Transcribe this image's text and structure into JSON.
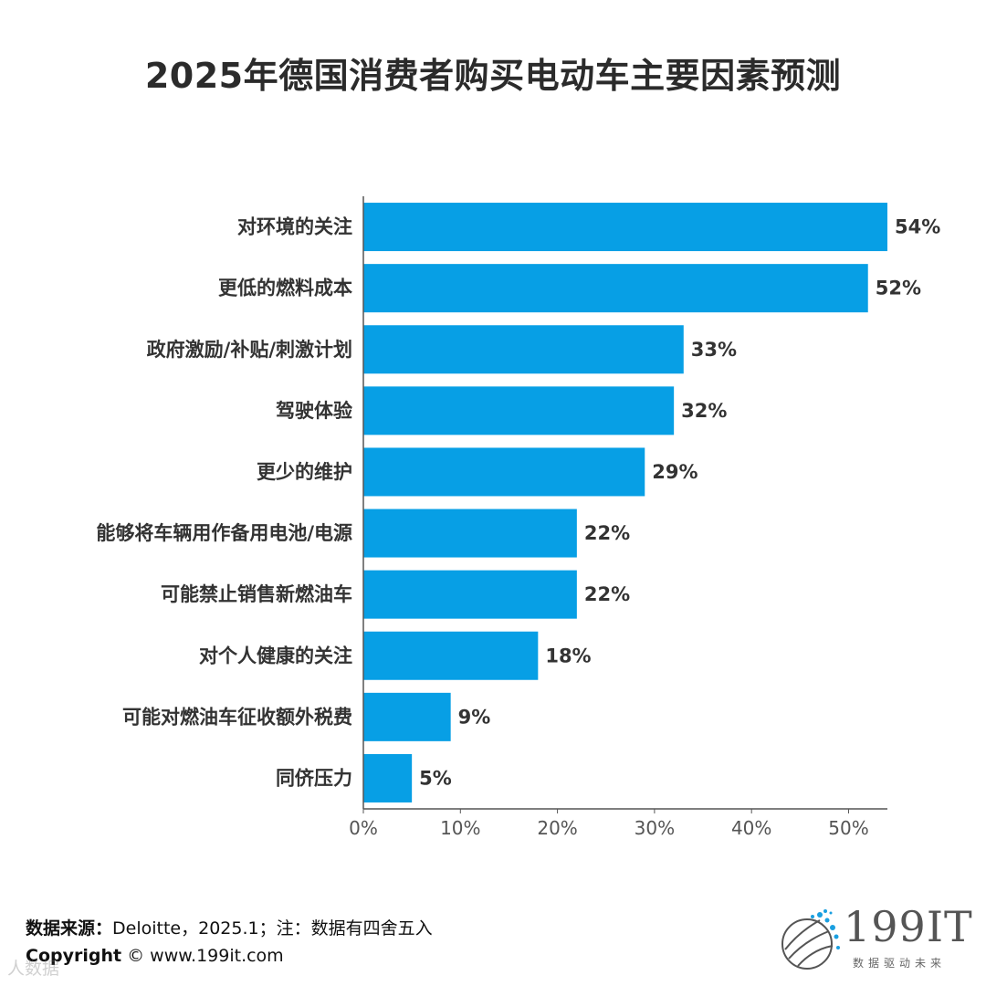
{
  "title": "2025年德国消费者购买电动车主要因素预测",
  "chart_data": {
    "type": "bar",
    "orientation": "horizontal",
    "categories": [
      "对环境的关注",
      "更低的燃料成本",
      "政府激励/补贴/刺激计划",
      "驾驶体验",
      "更少的维护",
      "能够将车辆用作备用电池/电源",
      "可能禁止销售新燃油车",
      "对个人健康的关注",
      "可能对燃油车征收额外税费",
      "同侪压力"
    ],
    "values": [
      54,
      52,
      33,
      32,
      29,
      22,
      22,
      18,
      9,
      5
    ],
    "value_labels": [
      "54%",
      "52%",
      "33%",
      "32%",
      "29%",
      "22%",
      "22%",
      "18%",
      "9%",
      "5%"
    ],
    "xlim": [
      0,
      54
    ],
    "x_ticks": [
      "0%",
      "10%",
      "20%",
      "30%",
      "40%",
      "50%"
    ],
    "x_tick_values": [
      0,
      10,
      20,
      30,
      40,
      50
    ],
    "bar_color": "#079fe5",
    "grid": false,
    "legend": "none"
  },
  "footer": {
    "source_label": "数据来源：",
    "source_text": "Deloitte，2025.1；注：数据有四舍五入",
    "copyright_label": "Copyright",
    "copyright_text": "©  www.199it.com",
    "watermark": "人数据"
  },
  "logo": {
    "name": "199IT",
    "main_text": "199",
    "it_text": "IT",
    "tagline": "数据驱动未来"
  }
}
